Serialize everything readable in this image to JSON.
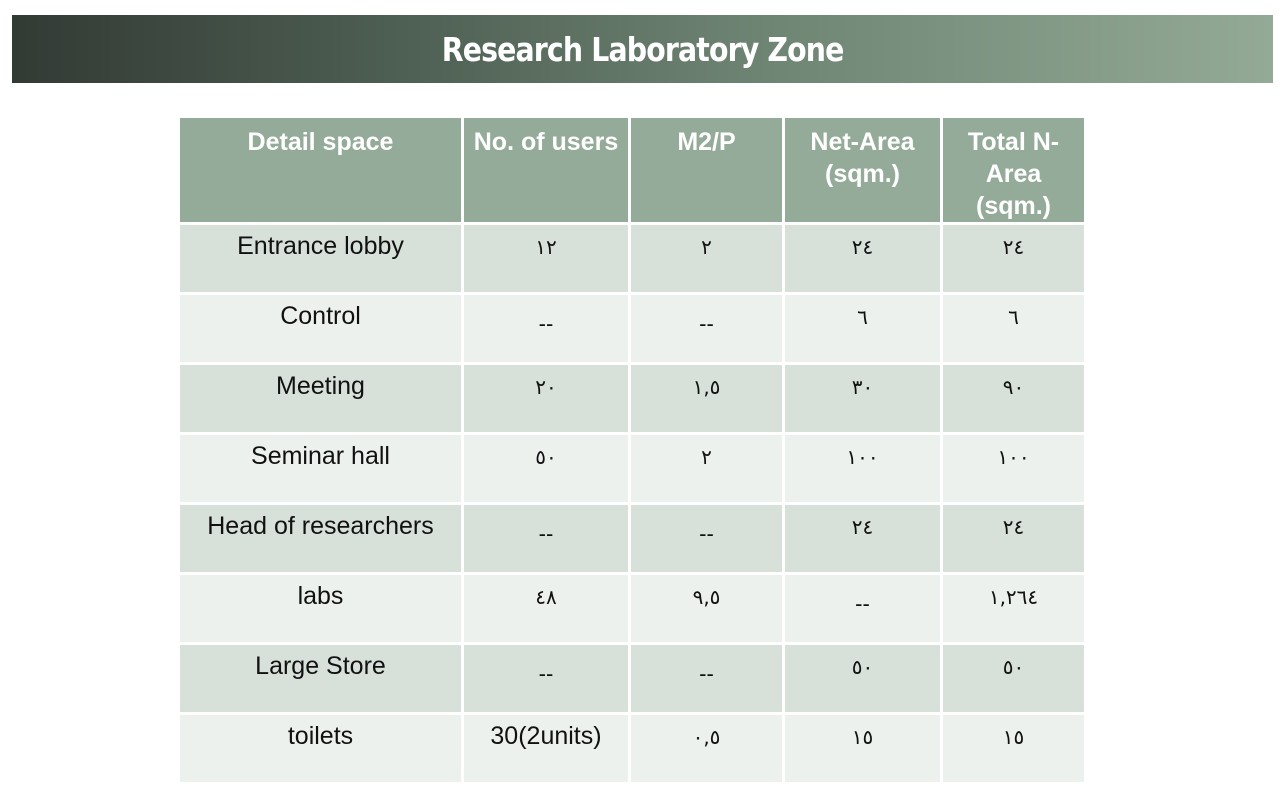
{
  "title": "Research Laboratory Zone",
  "table": {
    "headers": [
      "Detail space",
      "No. of users",
      "M2/P",
      "Net-Area (sqm.)",
      "Total N-Area (sqm.)"
    ],
    "rows": [
      [
        "Entrance lobby",
        "١٢",
        "٢",
        "٢٤",
        "٢٤"
      ],
      [
        "Control",
        "--",
        "--",
        "٦",
        "٦"
      ],
      [
        "Meeting",
        "٢٠",
        "١,٥",
        "٣٠",
        "٩٠"
      ],
      [
        "Seminar hall",
        "٥٠",
        "٢",
        "١٠٠",
        "١٠٠"
      ],
      [
        "Head of researchers",
        "--",
        "--",
        "٢٤",
        "٢٤"
      ],
      [
        "labs",
        "٤٨",
        "٩,٥",
        "--",
        "١,٢٦٤"
      ],
      [
        "Large Store",
        "--",
        "--",
        "٥٠",
        "٥٠"
      ],
      [
        "toilets",
        "30(2units)",
        "٠,٥",
        "١٥",
        "١٥"
      ]
    ]
  },
  "colors": {
    "header_bg": "#95ab99",
    "row_dark": "#d8e0da",
    "row_light": "#edf1ee",
    "banner_start": "#323a34",
    "banner_end": "#93aa96"
  }
}
